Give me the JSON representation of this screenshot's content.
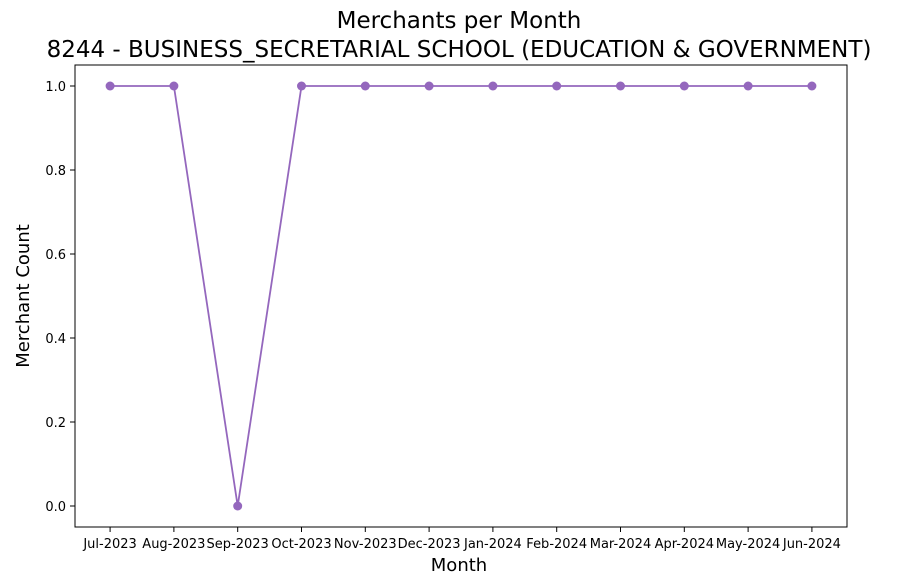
{
  "chart_data": {
    "type": "line",
    "title": "Merchants per Month",
    "subtitle": "8244 - BUSINESS_SECRETARIAL SCHOOL (EDUCATION & GOVERNMENT)",
    "xlabel": "Month",
    "ylabel": "Merchant Count",
    "categories": [
      "Jul-2023",
      "Aug-2023",
      "Sep-2023",
      "Oct-2023",
      "Nov-2023",
      "Dec-2023",
      "Jan-2024",
      "Feb-2024",
      "Mar-2024",
      "Apr-2024",
      "May-2024",
      "Jun-2024"
    ],
    "values": [
      1,
      1,
      0,
      1,
      1,
      1,
      1,
      1,
      1,
      1,
      1,
      1
    ],
    "ylim": [
      -0.05,
      1.05
    ],
    "yticks": [
      "0.0",
      "0.2",
      "0.4",
      "0.6",
      "0.8",
      "1.0"
    ],
    "grid": false,
    "line_color": "#9467bd",
    "marker": "circle"
  }
}
